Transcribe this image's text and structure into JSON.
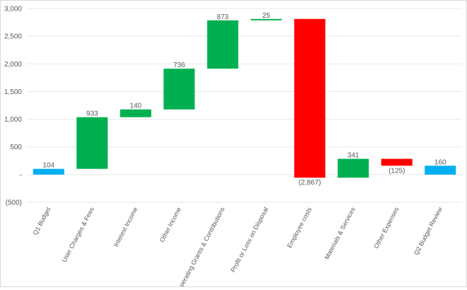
{
  "chart_data": {
    "type": "waterfall",
    "title": "",
    "xlabel": "",
    "ylabel": "",
    "ylim": [
      -500,
      3000
    ],
    "yticks": [
      -500,
      0,
      500,
      1000,
      1500,
      2000,
      2500,
      3000
    ],
    "ytick_labels": [
      "(500)",
      "-",
      "500",
      "1,000",
      "1,500",
      "2,000",
      "2,500",
      "3,000"
    ],
    "grid": true,
    "categories": [
      "Q1 Budget",
      "User Charges & Fees",
      "Interest Income",
      "Other Income",
      "Operating Grants & Contributions",
      "Profit or Loss on Disposal",
      "Employee costs",
      "Materials & Services",
      "Other Expenses",
      "Q2 Budget Review"
    ],
    "values": [
      104,
      933,
      140,
      736,
      873,
      25,
      -2867,
      341,
      -125,
      160
    ],
    "kinds": [
      "total",
      "delta",
      "delta",
      "delta",
      "delta",
      "delta",
      "delta",
      "delta",
      "delta",
      "total"
    ],
    "data_labels": [
      "104",
      "933",
      "140",
      "736",
      "873",
      "25",
      "(2,867)",
      "341",
      "(125)",
      "160"
    ],
    "colors": {
      "total": "#00b0f0",
      "increase": "#00b050",
      "decrease": "#ff0000",
      "grid": "#e8e8e8",
      "text": "#595959"
    }
  }
}
